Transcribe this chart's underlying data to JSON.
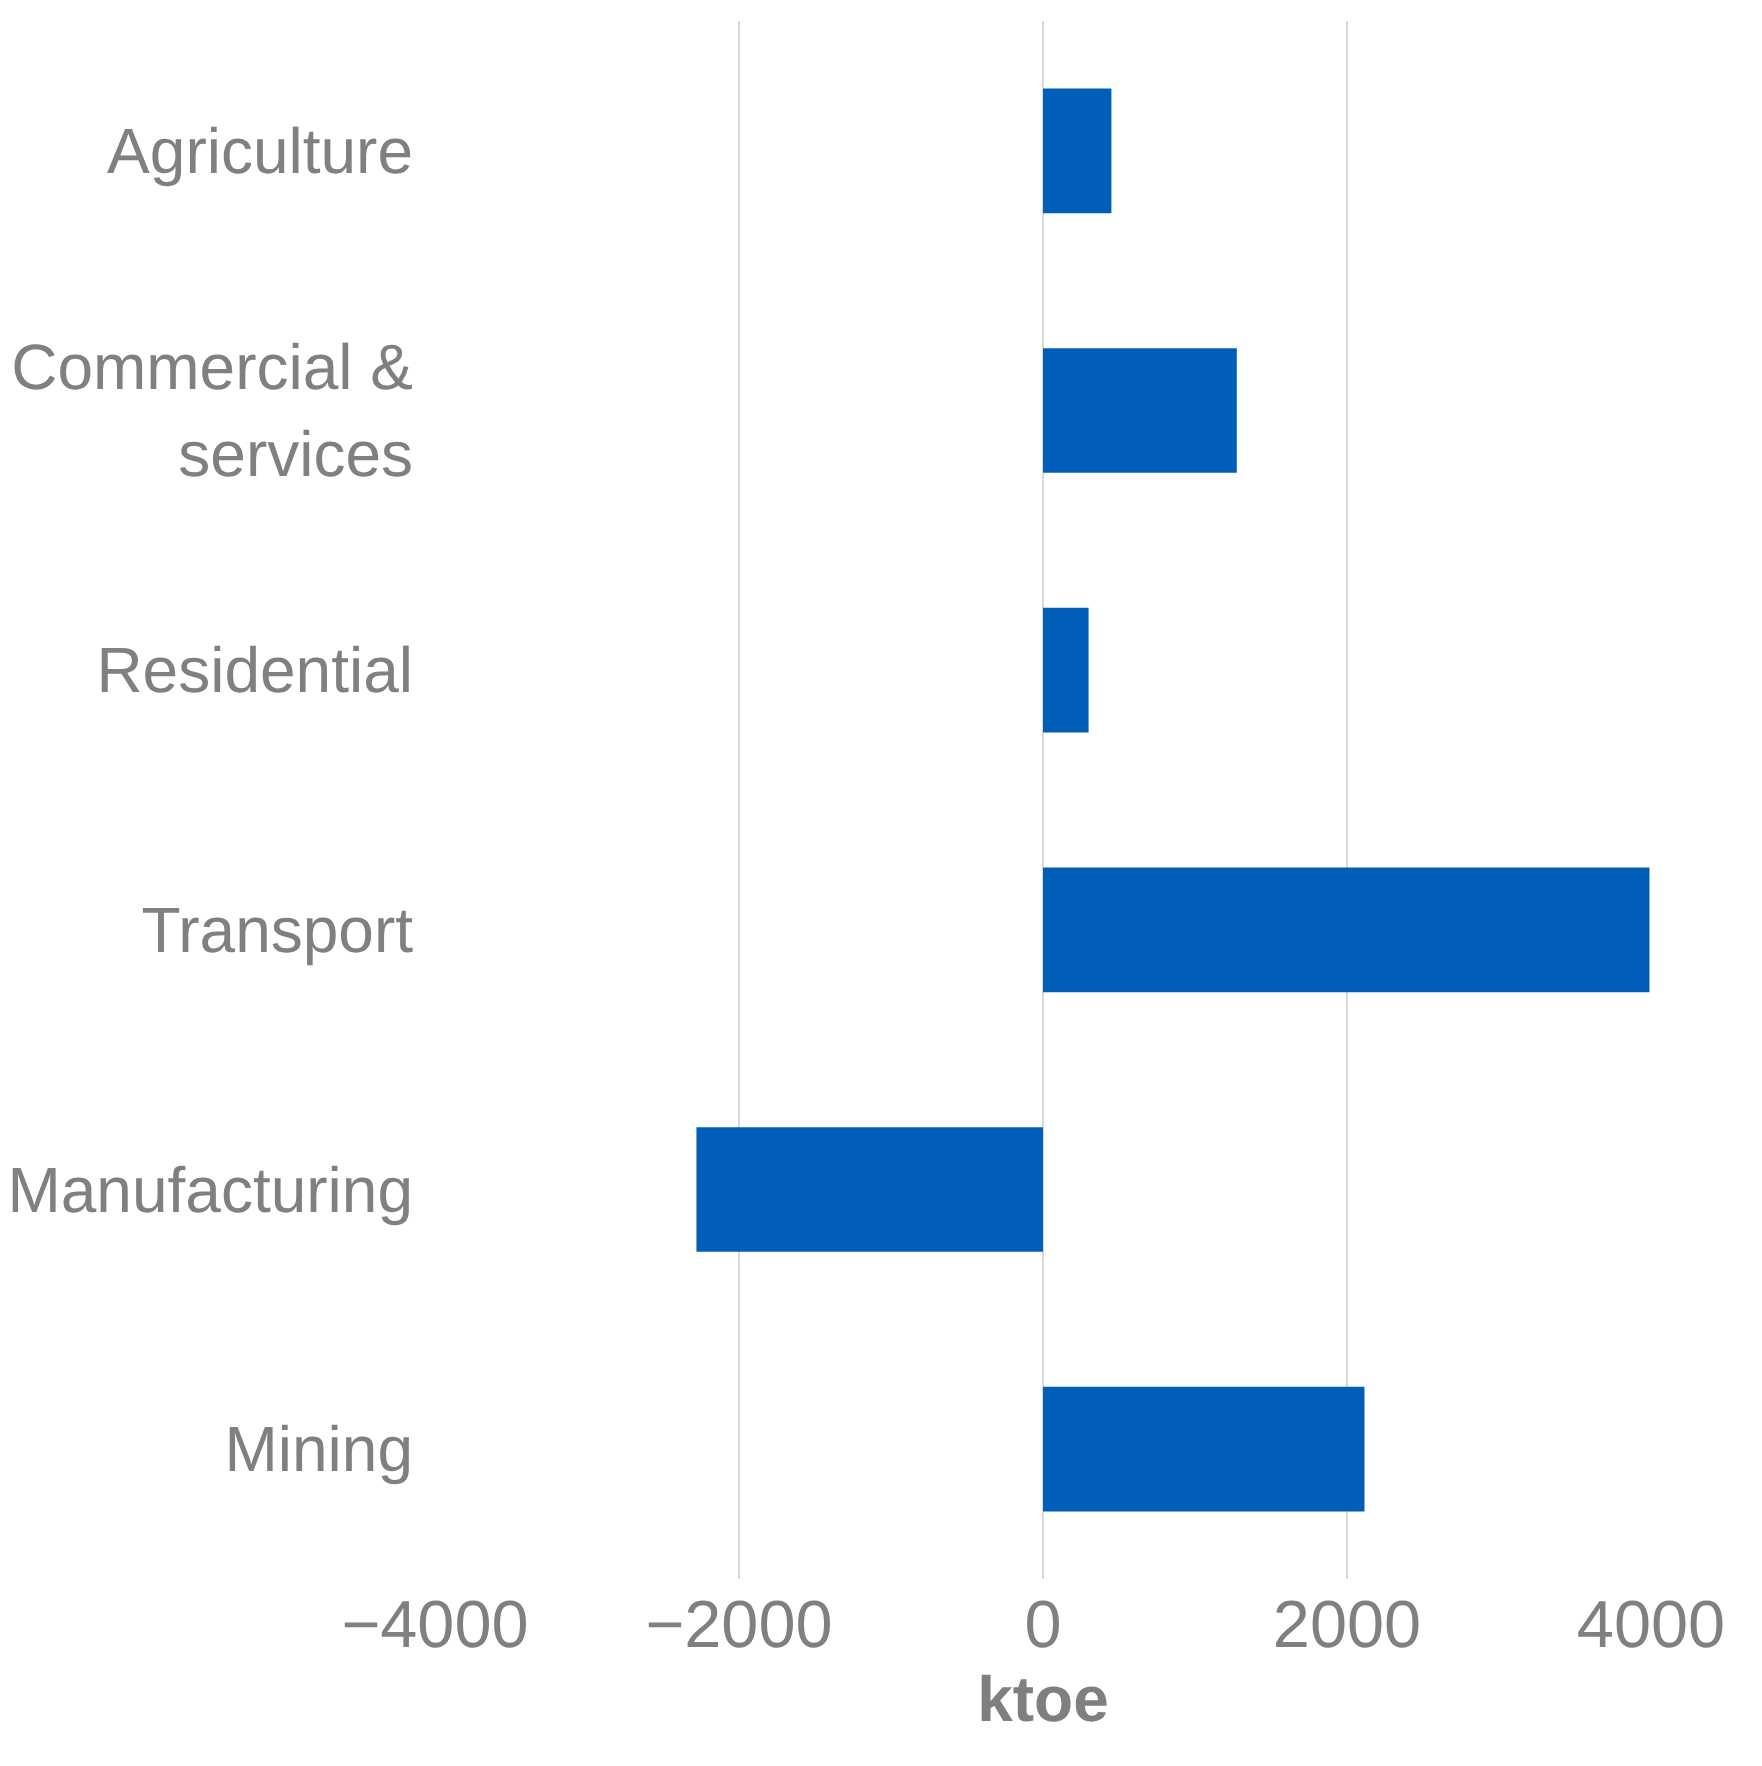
{
  "chart_data": {
    "type": "bar",
    "orientation": "horizontal",
    "xlabel": "ktoe",
    "categories": [
      "Agriculture",
      "Commercial &\nservices",
      "Residential",
      "Transport",
      "Manufacturing",
      "Mining"
    ],
    "values": [
      450,
      1275,
      300,
      3990,
      -2280,
      2115
    ],
    "color": "#005eb8",
    "xlim": [
      -4000,
      4000
    ],
    "xticks": [
      -4000,
      -2000,
      0,
      2000,
      4000
    ],
    "grid": "x"
  }
}
